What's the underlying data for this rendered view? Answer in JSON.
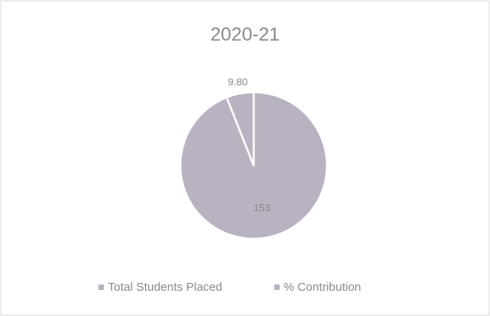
{
  "chart_data": {
    "type": "pie",
    "title": "2020-21",
    "categories": [
      "Total Students Placed",
      "% Contribution"
    ],
    "values": [
      153,
      9.8
    ],
    "value_labels": [
      "153",
      "9.80"
    ],
    "colors": [
      "#b9b2c0",
      "#b9b2c0"
    ],
    "legend": "bottom"
  }
}
